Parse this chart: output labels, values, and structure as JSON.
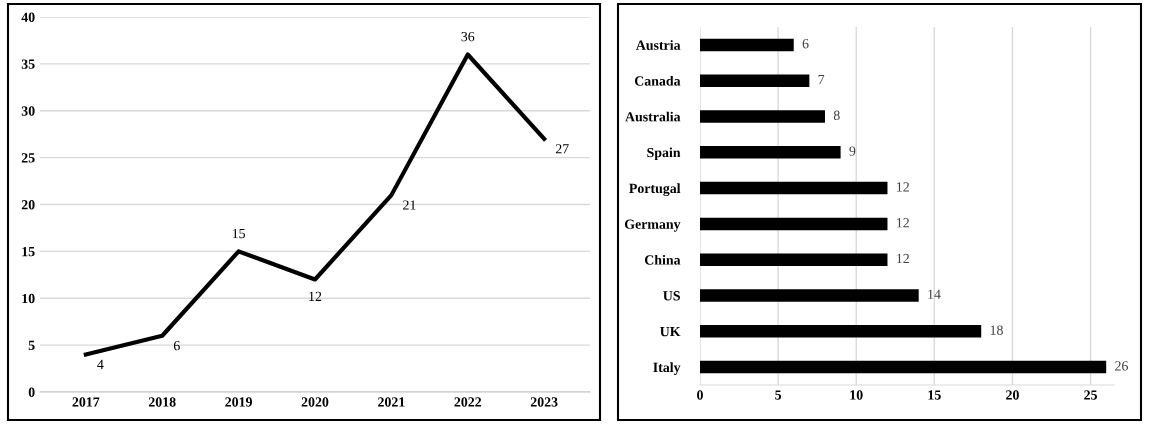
{
  "chart_data": [
    {
      "type": "line",
      "categories": [
        "2017",
        "2018",
        "2019",
        "2020",
        "2021",
        "2022",
        "2023"
      ],
      "values": [
        4,
        6,
        15,
        12,
        21,
        36,
        27
      ],
      "color": "#000000",
      "ylim": [
        0,
        40
      ],
      "yticks": [
        0,
        5,
        10,
        15,
        20,
        25,
        30,
        35,
        40
      ],
      "grid": "y",
      "data_labels": true,
      "marker": "none",
      "line_style": "solid"
    },
    {
      "type": "bar",
      "orientation": "horizontal",
      "categories": [
        "Austria",
        "Canada",
        "Australia",
        "Spain",
        "Portugal",
        "Germany",
        "China",
        "US",
        "UK",
        "Italy"
      ],
      "values": [
        6,
        7,
        8,
        9,
        12,
        12,
        12,
        14,
        18,
        26
      ],
      "color": "#000000",
      "xlim": [
        0,
        26.5
      ],
      "xticks": [
        0,
        5,
        10,
        15,
        20,
        25
      ],
      "grid": "x",
      "data_labels": true
    }
  ]
}
